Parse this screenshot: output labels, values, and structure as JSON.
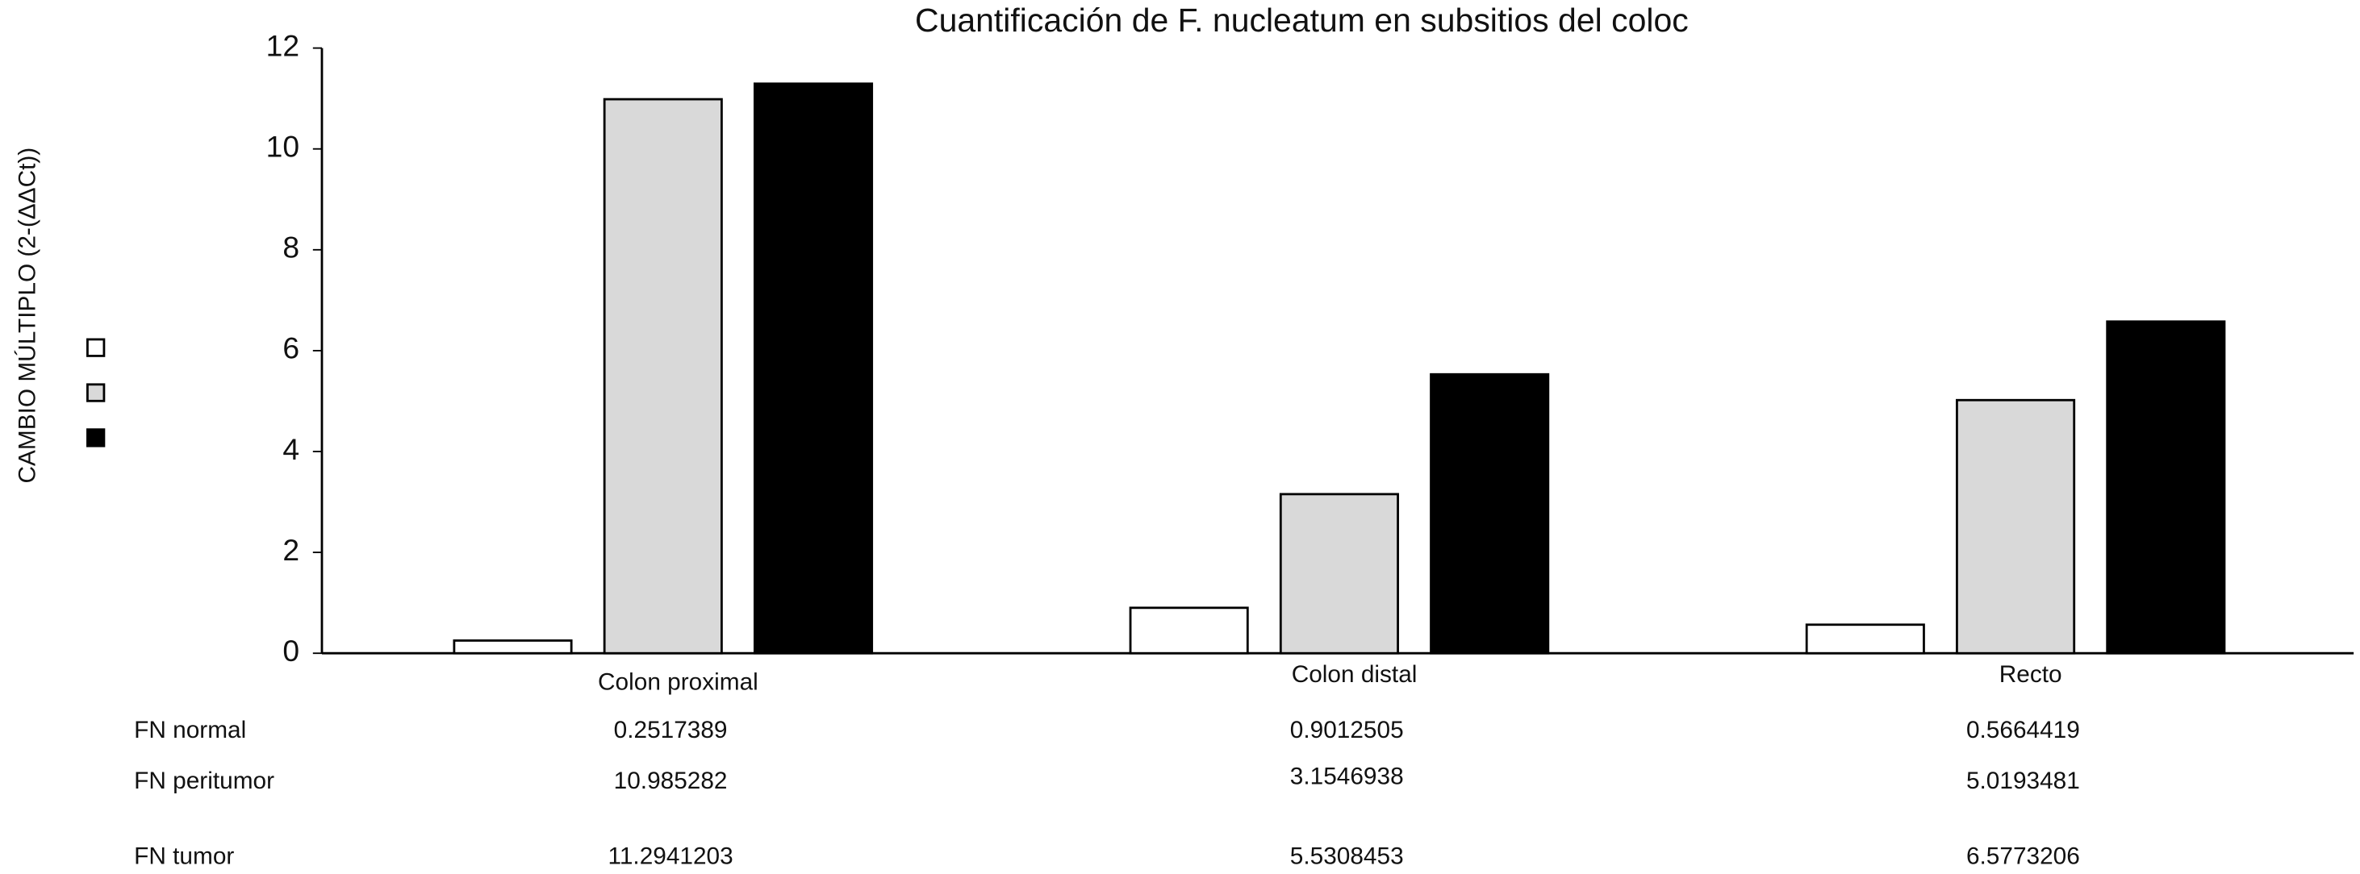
{
  "chart_data": {
    "type": "bar",
    "title": "Cuantificación de F. nucleatum en subsitios del coloc",
    "ylabel": "CAMBIO MÚLTIPLO (2-(ΔΔCt))",
    "categories": [
      "Colon proximal",
      "Colon distal",
      "Recto"
    ],
    "series": [
      {
        "name": "FN normal",
        "color": "#ffffff",
        "values": [
          0.2517389,
          0.9012505,
          0.5664419
        ]
      },
      {
        "name": "FN peritumor",
        "color": "#d9d9d9",
        "values": [
          10.985282,
          3.1546938,
          5.0193481
        ]
      },
      {
        "name": "FN tumor",
        "color": "#000000",
        "values": [
          11.2941203,
          5.5308453,
          6.5773206
        ]
      }
    ],
    "ylim": [
      0,
      12
    ],
    "yticks": [
      0,
      2,
      4,
      6,
      8,
      10,
      12
    ]
  }
}
